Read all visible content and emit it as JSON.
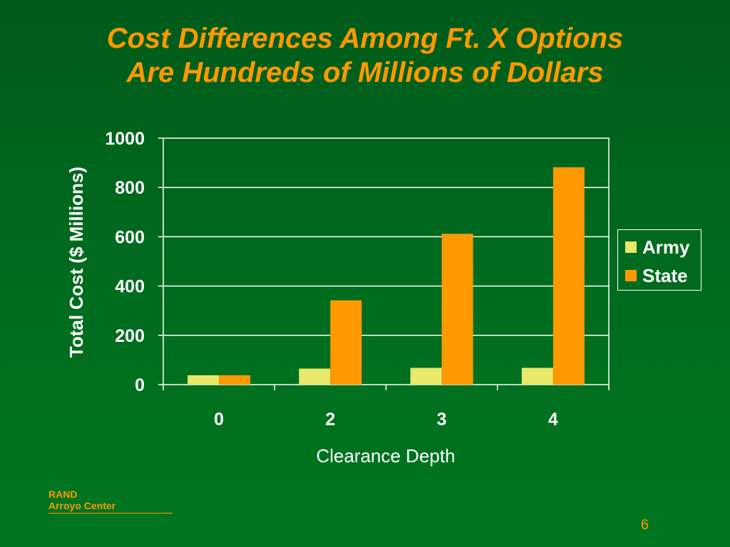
{
  "slide": {
    "title_line1": "Cost Differences Among Ft. X Options",
    "title_line2": "Are Hundreds of Millions of Dollars",
    "footer_org_line1": "RAND",
    "footer_org_line2": "Arroyo Center",
    "page_number": "6"
  },
  "colors": {
    "background_top": "#005a1a",
    "background_bottom": "#00761f",
    "title": "#ff9900",
    "army": "#e8e86a",
    "state": "#ff9900",
    "axis_and_grid": "#ffffff"
  },
  "chart_data": {
    "type": "bar",
    "title": "",
    "xlabel": "Clearance Depth",
    "ylabel": "Total Cost ($ Millions)",
    "categories": [
      "0",
      "2",
      "3",
      "4"
    ],
    "series": [
      {
        "name": "Army",
        "values": [
          38,
          65,
          68,
          68
        ]
      },
      {
        "name": "State",
        "values": [
          38,
          342,
          612,
          882
        ]
      }
    ],
    "ylim": [
      0,
      1000
    ],
    "yticks": [
      0,
      200,
      400,
      600,
      800,
      1000
    ],
    "grid": true,
    "legend_position": "right"
  }
}
